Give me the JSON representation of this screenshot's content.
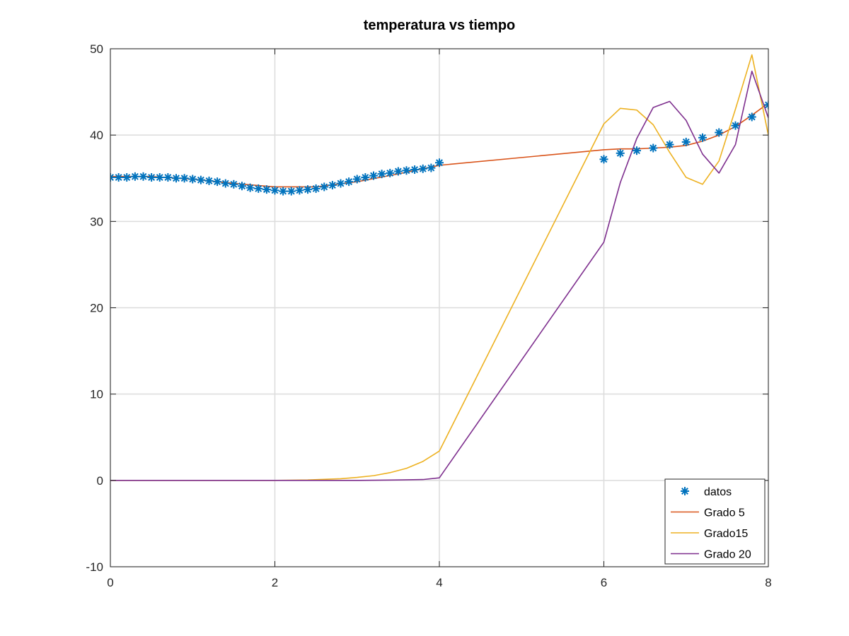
{
  "chart_data": {
    "type": "line",
    "title": "temperatura vs tiempo",
    "xlabel": "",
    "ylabel": "",
    "xlim": [
      0,
      8
    ],
    "ylim": [
      -10,
      50
    ],
    "xticks": [
      0,
      2,
      4,
      6,
      8
    ],
    "yticks": [
      -10,
      0,
      10,
      20,
      30,
      40,
      50
    ],
    "grid": true,
    "legend_location": "bottom-right",
    "series": [
      {
        "name": "datos",
        "style": "markers",
        "marker": "*",
        "color": "#0072BD",
        "x": [
          0,
          0.1,
          0.2,
          0.3,
          0.4,
          0.5,
          0.6,
          0.7,
          0.8,
          0.9,
          1.0,
          1.1,
          1.2,
          1.3,
          1.4,
          1.5,
          1.6,
          1.7,
          1.8,
          1.9,
          2.0,
          2.1,
          2.2,
          2.3,
          2.4,
          2.5,
          2.6,
          2.7,
          2.8,
          2.9,
          3.0,
          3.1,
          3.2,
          3.3,
          3.4,
          3.5,
          3.6,
          3.7,
          3.8,
          3.9,
          4.0,
          6.0,
          6.2,
          6.4,
          6.6,
          6.8,
          7.0,
          7.2,
          7.4,
          7.6,
          7.8,
          8.0
        ],
        "y": [
          35.1,
          35.1,
          35.1,
          35.2,
          35.2,
          35.1,
          35.1,
          35.1,
          35.0,
          35.0,
          34.9,
          34.8,
          34.7,
          34.6,
          34.4,
          34.3,
          34.1,
          33.9,
          33.8,
          33.7,
          33.6,
          33.5,
          33.5,
          33.6,
          33.7,
          33.8,
          34.0,
          34.2,
          34.4,
          34.6,
          34.9,
          35.1,
          35.3,
          35.5,
          35.6,
          35.8,
          35.9,
          36.0,
          36.1,
          36.2,
          36.8,
          37.2,
          37.9,
          38.2,
          38.5,
          38.9,
          39.2,
          39.7,
          40.3,
          41.1,
          42.1,
          43.5
        ]
      },
      {
        "name": "Grado 5",
        "style": "line",
        "color": "#D95319",
        "x": [
          0,
          0.5,
          1.0,
          1.5,
          2.0,
          2.5,
          3.0,
          3.5,
          4.0,
          6.0,
          6.2,
          6.4,
          6.6,
          6.8,
          7.0,
          7.2,
          7.4,
          7.6,
          7.8,
          8.0
        ],
        "y": [
          35.2,
          35.2,
          34.9,
          34.4,
          34.0,
          34.0,
          34.6,
          35.5,
          36.5,
          38.3,
          38.4,
          38.4,
          38.5,
          38.6,
          38.8,
          39.3,
          40.0,
          41.0,
          42.3,
          43.7
        ]
      },
      {
        "name": "Grado15",
        "style": "line",
        "color": "#EDB120",
        "x": [
          0,
          1.0,
          2.0,
          2.4,
          2.8,
          3.0,
          3.2,
          3.4,
          3.6,
          3.8,
          4.0,
          6.0,
          6.2,
          6.4,
          6.6,
          6.8,
          7.0,
          7.2,
          7.4,
          7.6,
          7.8,
          8.0
        ],
        "y": [
          0,
          0,
          0,
          0.05,
          0.2,
          0.35,
          0.55,
          0.9,
          1.4,
          2.2,
          3.4,
          41.3,
          43.1,
          42.9,
          41.2,
          38.0,
          35.1,
          34.3,
          37.0,
          43.0,
          49.3,
          40.0
        ]
      },
      {
        "name": "Grado 20",
        "style": "line",
        "color": "#7E2F8E",
        "x": [
          0,
          1.0,
          2.0,
          3.0,
          3.5,
          3.8,
          4.0,
          6.0,
          6.2,
          6.4,
          6.6,
          6.8,
          7.0,
          7.2,
          7.4,
          7.6,
          7.8,
          8.0
        ],
        "y": [
          0,
          0,
          0,
          0,
          0.05,
          0.1,
          0.3,
          27.6,
          34.5,
          39.6,
          43.2,
          43.9,
          41.7,
          37.8,
          35.6,
          38.9,
          47.4,
          42.0
        ]
      }
    ]
  }
}
